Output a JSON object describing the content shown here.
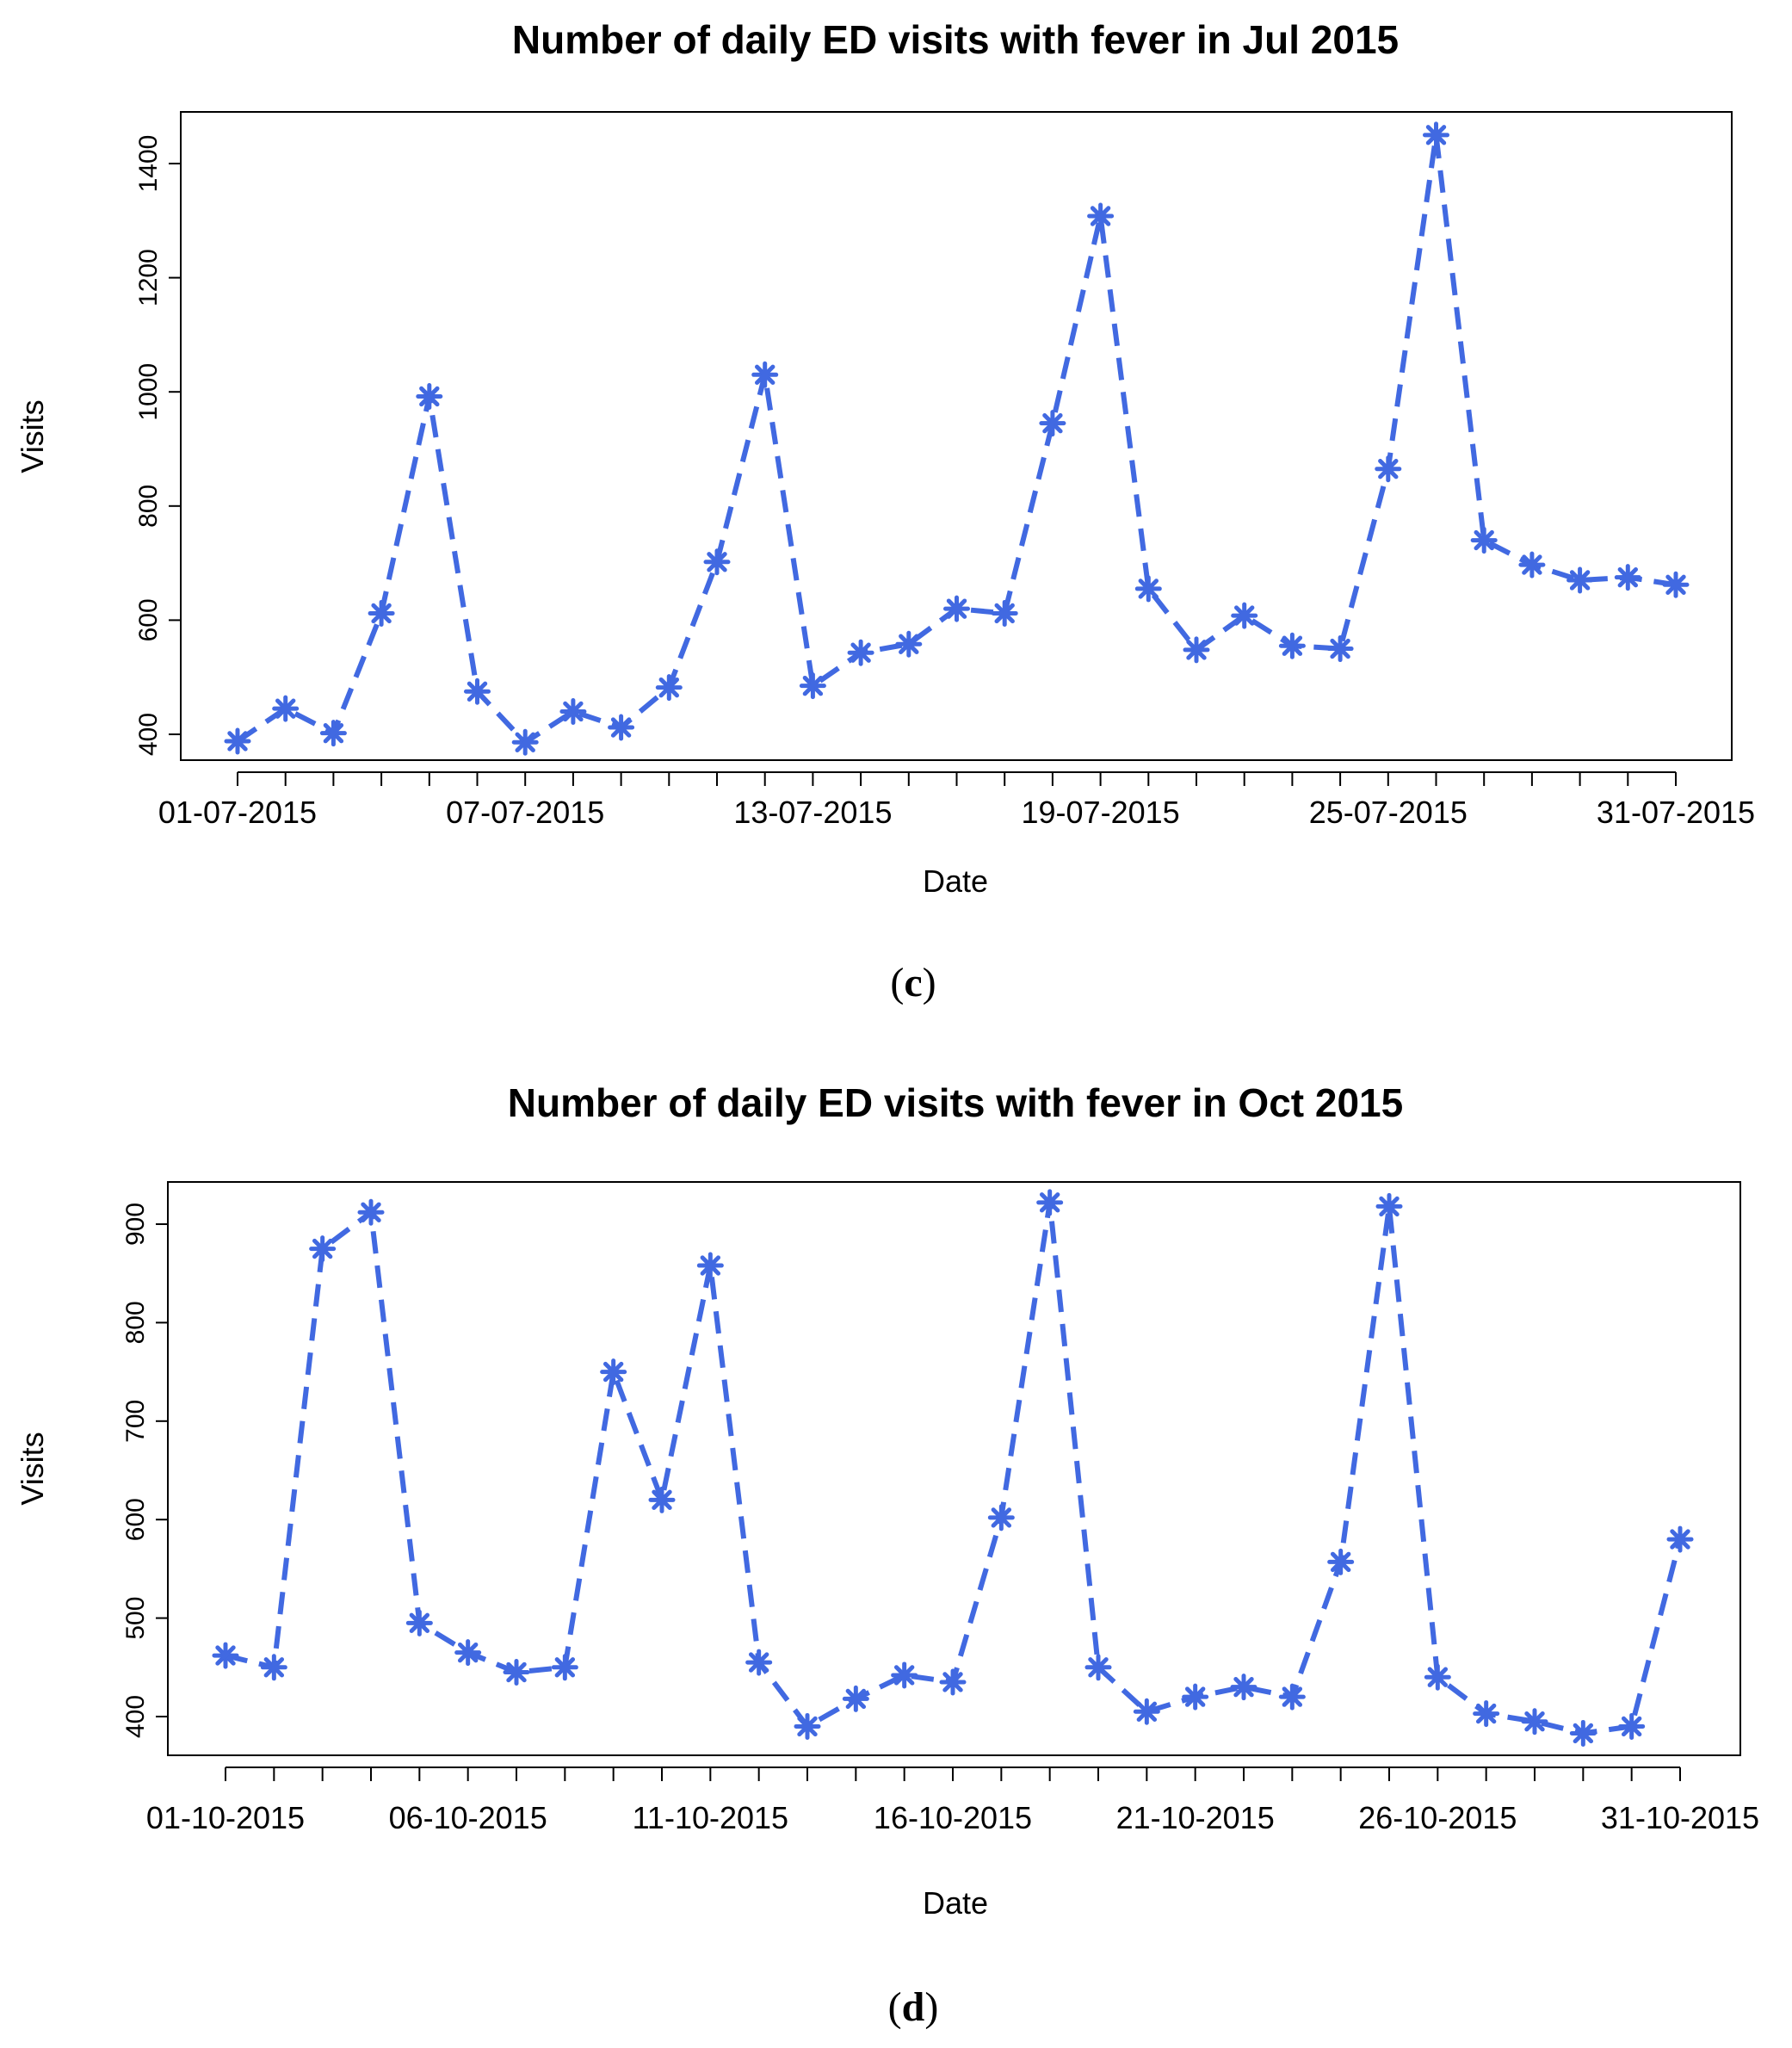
{
  "chart_data": [
    {
      "type": "line",
      "title": "Number of daily ED visits with fever in Jul 2015",
      "xlabel": "Date",
      "ylabel": "Visits",
      "caption_open": "(",
      "caption_letter": "c",
      "caption_close": ")",
      "color": "#4169E1",
      "ylim": [
        370,
        1475
      ],
      "yticks": [
        400,
        600,
        800,
        1000,
        1200,
        1400
      ],
      "x": [
        1,
        2,
        3,
        4,
        5,
        6,
        7,
        8,
        9,
        10,
        11,
        12,
        13,
        14,
        15,
        16,
        17,
        18,
        19,
        20,
        21,
        22,
        23,
        24,
        25,
        26,
        27,
        28,
        29,
        30,
        31
      ],
      "xtick_labels": [
        {
          "day": 1,
          "label": "01-07-2015"
        },
        {
          "day": 7,
          "label": "07-07-2015"
        },
        {
          "day": 13,
          "label": "13-07-2015"
        },
        {
          "day": 19,
          "label": "19-07-2015"
        },
        {
          "day": 25,
          "label": "25-07-2015"
        },
        {
          "day": 31,
          "label": "31-07-2015"
        }
      ],
      "series": [
        {
          "name": "Visits",
          "values": [
            388,
            445,
            402,
            612,
            992,
            475,
            386,
            440,
            412,
            482,
            702,
            1030,
            485,
            543,
            558,
            620,
            612,
            945,
            1308,
            655,
            548,
            608,
            555,
            550,
            865,
            1450,
            740,
            697,
            670,
            675,
            662
          ]
        }
      ]
    },
    {
      "type": "line",
      "title": "Number of daily ED visits with fever in Oct 2015",
      "xlabel": "Date",
      "ylabel": "Visits",
      "caption_open": "(",
      "caption_letter": "d",
      "caption_close": ")",
      "color": "#4169E1",
      "ylim": [
        360,
        940
      ],
      "yticks": [
        400,
        500,
        600,
        700,
        800,
        900
      ],
      "x": [
        1,
        2,
        3,
        4,
        5,
        6,
        7,
        8,
        9,
        10,
        11,
        12,
        13,
        14,
        15,
        16,
        17,
        18,
        19,
        20,
        21,
        22,
        23,
        24,
        25,
        26,
        27,
        28,
        29,
        30,
        31
      ],
      "xtick_labels": [
        {
          "day": 1,
          "label": "01-10-2015"
        },
        {
          "day": 6,
          "label": "06-10-2015"
        },
        {
          "day": 11,
          "label": "11-10-2015"
        },
        {
          "day": 16,
          "label": "16-10-2015"
        },
        {
          "day": 21,
          "label": "21-10-2015"
        },
        {
          "day": 26,
          "label": "26-10-2015"
        },
        {
          "day": 31,
          "label": "31-10-2015"
        }
      ],
      "series": [
        {
          "name": "Visits",
          "values": [
            462,
            450,
            875,
            912,
            495,
            465,
            445,
            450,
            750,
            620,
            858,
            455,
            390,
            418,
            442,
            435,
            602,
            922,
            450,
            405,
            420,
            430,
            420,
            557,
            918,
            440,
            403,
            395,
            383,
            390,
            580
          ]
        }
      ]
    }
  ]
}
